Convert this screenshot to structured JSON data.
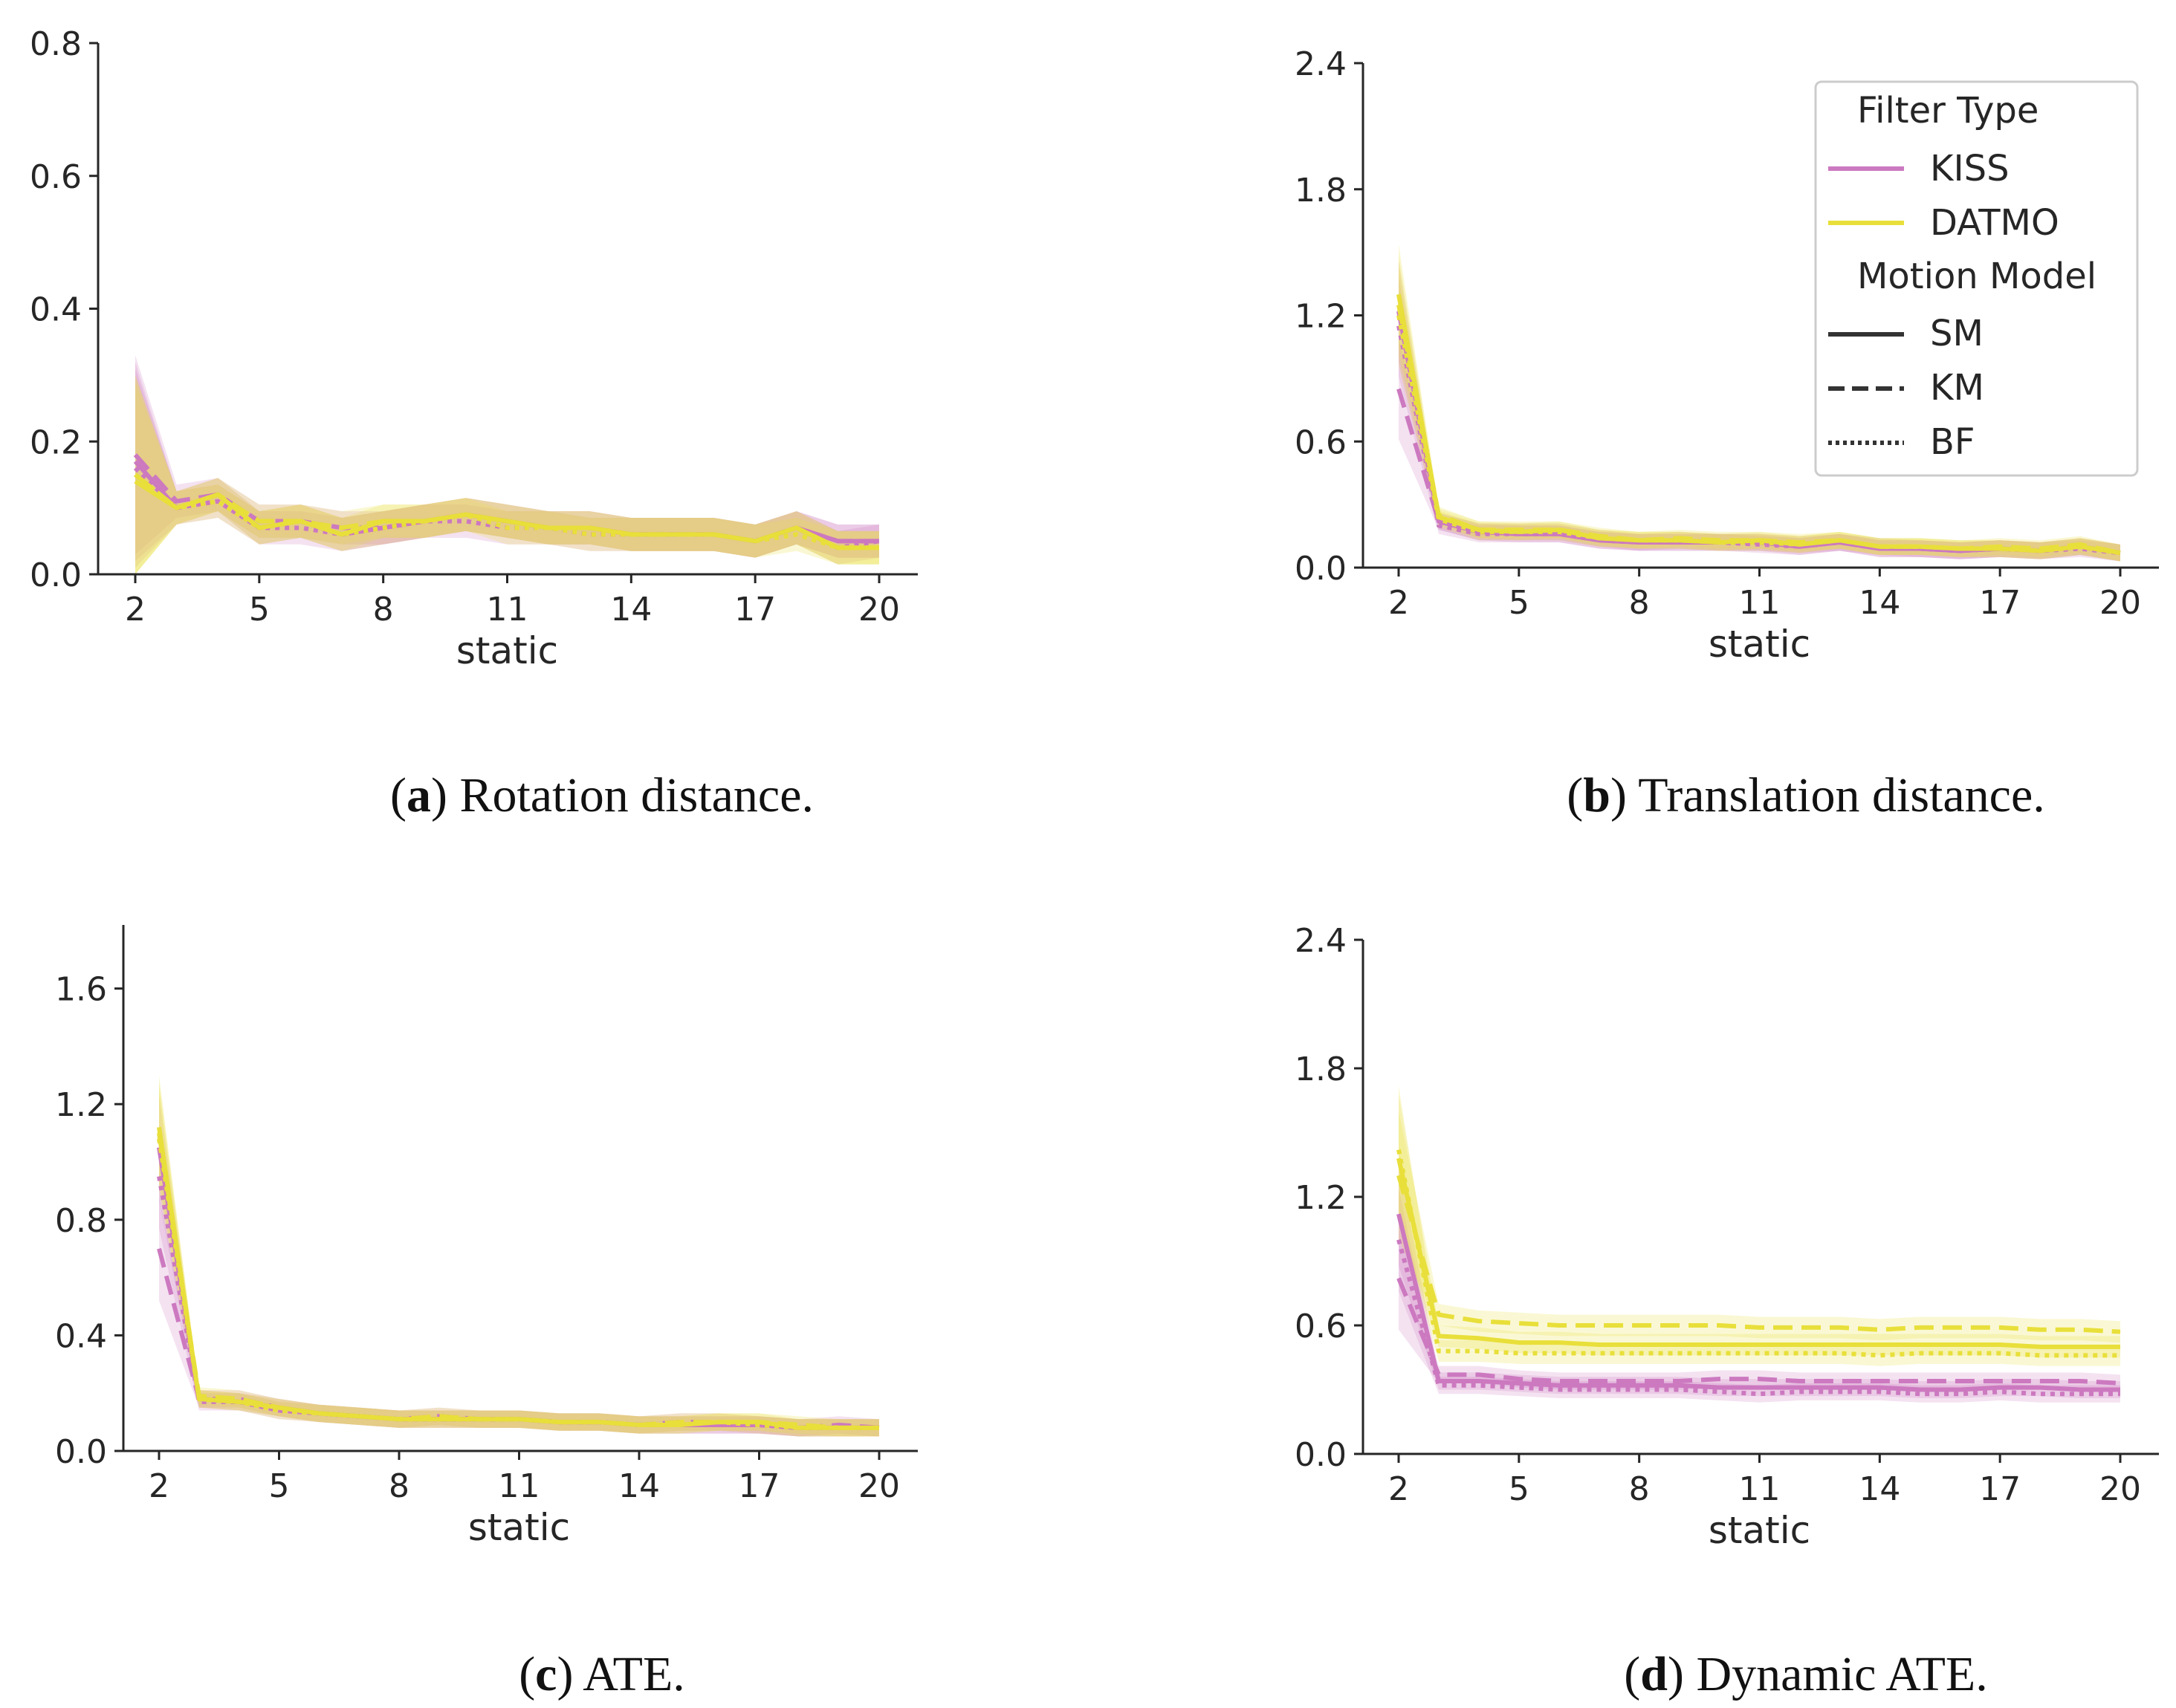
{
  "colors": {
    "KISS": "#cc79c0",
    "DATMO": "#e8df3a",
    "axis": "#262626"
  },
  "legend": {
    "filter_title": "Filter Type",
    "filter_items": [
      "KISS",
      "DATMO"
    ],
    "motion_title": "Motion Model",
    "motion_items": [
      "SM",
      "KM",
      "BF"
    ]
  },
  "chart_data": [
    {
      "type": "line",
      "caption_letter": "a",
      "caption_text": "Rotation distance.",
      "xlabel": "static",
      "ylabel": "",
      "xlim": [
        2,
        20
      ],
      "ylim": [
        0,
        0.8
      ],
      "xticks": [
        2,
        5,
        8,
        11,
        14,
        17,
        20
      ],
      "yticks": [
        "0.0",
        "0.2",
        "0.4",
        "0.6",
        "0.8"
      ],
      "x": [
        2,
        3,
        4,
        5,
        6,
        7,
        8,
        9,
        10,
        11,
        12,
        13,
        14,
        15,
        16,
        17,
        18,
        19,
        20
      ],
      "series": [
        {
          "filter": "KISS",
          "model": "SM",
          "values": [
            0.17,
            0.1,
            0.12,
            0.07,
            0.08,
            0.06,
            0.07,
            0.08,
            0.09,
            0.08,
            0.07,
            0.07,
            0.06,
            0.06,
            0.06,
            0.05,
            0.07,
            0.05,
            0.05
          ],
          "band": 0.025
        },
        {
          "filter": "KISS",
          "model": "KM",
          "values": [
            0.18,
            0.11,
            0.12,
            0.08,
            0.08,
            0.07,
            0.07,
            0.08,
            0.09,
            0.08,
            0.07,
            0.07,
            0.06,
            0.06,
            0.06,
            0.05,
            0.07,
            0.05,
            0.05
          ],
          "band": 0.025
        },
        {
          "filter": "KISS",
          "model": "BF",
          "values": [
            0.16,
            0.1,
            0.11,
            0.07,
            0.07,
            0.06,
            0.07,
            0.08,
            0.08,
            0.07,
            0.07,
            0.06,
            0.06,
            0.06,
            0.06,
            0.05,
            0.07,
            0.04,
            0.05
          ],
          "band": 0.025
        },
        {
          "filter": "DATMO",
          "model": "SM",
          "values": [
            0.14,
            0.1,
            0.12,
            0.07,
            0.08,
            0.06,
            0.08,
            0.08,
            0.09,
            0.08,
            0.07,
            0.07,
            0.06,
            0.06,
            0.06,
            0.05,
            0.07,
            0.04,
            0.04
          ],
          "band": 0.025
        },
        {
          "filter": "DATMO",
          "model": "KM",
          "values": [
            0.15,
            0.1,
            0.12,
            0.08,
            0.08,
            0.07,
            0.08,
            0.08,
            0.09,
            0.08,
            0.07,
            0.07,
            0.06,
            0.06,
            0.06,
            0.05,
            0.07,
            0.04,
            0.04
          ],
          "band": 0.025
        },
        {
          "filter": "DATMO",
          "model": "BF",
          "values": [
            0.15,
            0.1,
            0.11,
            0.07,
            0.08,
            0.06,
            0.07,
            0.08,
            0.09,
            0.07,
            0.07,
            0.06,
            0.06,
            0.06,
            0.06,
            0.05,
            0.06,
            0.04,
            0.04
          ],
          "band": 0.025
        }
      ]
    },
    {
      "type": "line",
      "caption_letter": "b",
      "caption_text": "Translation distance.",
      "xlabel": "static",
      "ylabel": "",
      "xlim": [
        2,
        20
      ],
      "ylim": [
        0,
        2.4
      ],
      "xticks": [
        2,
        5,
        8,
        11,
        14,
        17,
        20
      ],
      "yticks": [
        "0.0",
        "0.6",
        "1.2",
        "1.8",
        "2.4"
      ],
      "x": [
        2,
        3,
        4,
        5,
        6,
        7,
        8,
        9,
        10,
        11,
        12,
        13,
        14,
        15,
        16,
        17,
        18,
        19,
        20
      ],
      "series": [
        {
          "filter": "KISS",
          "model": "SM",
          "values": [
            1.22,
            0.22,
            0.17,
            0.16,
            0.16,
            0.13,
            0.12,
            0.12,
            0.12,
            0.12,
            0.1,
            0.12,
            0.09,
            0.09,
            0.08,
            0.09,
            0.08,
            0.1,
            0.07
          ],
          "band": 0.04
        },
        {
          "filter": "KISS",
          "model": "KM",
          "values": [
            0.85,
            0.22,
            0.17,
            0.17,
            0.17,
            0.14,
            0.12,
            0.13,
            0.12,
            0.12,
            0.11,
            0.12,
            0.1,
            0.09,
            0.08,
            0.09,
            0.08,
            0.1,
            0.07
          ],
          "band": 0.04
        },
        {
          "filter": "KISS",
          "model": "BF",
          "values": [
            1.15,
            0.2,
            0.16,
            0.16,
            0.16,
            0.13,
            0.12,
            0.12,
            0.12,
            0.11,
            0.1,
            0.12,
            0.09,
            0.09,
            0.08,
            0.09,
            0.08,
            0.09,
            0.07
          ],
          "band": 0.04
        },
        {
          "filter": "DATMO",
          "model": "SM",
          "values": [
            1.3,
            0.24,
            0.18,
            0.17,
            0.18,
            0.14,
            0.13,
            0.13,
            0.12,
            0.13,
            0.11,
            0.13,
            0.1,
            0.1,
            0.09,
            0.09,
            0.08,
            0.1,
            0.07
          ],
          "band": 0.04
        },
        {
          "filter": "DATMO",
          "model": "KM",
          "values": [
            1.25,
            0.25,
            0.18,
            0.18,
            0.18,
            0.15,
            0.13,
            0.14,
            0.13,
            0.13,
            0.12,
            0.13,
            0.1,
            0.1,
            0.09,
            0.1,
            0.09,
            0.11,
            0.07
          ],
          "band": 0.04
        },
        {
          "filter": "DATMO",
          "model": "BF",
          "values": [
            1.2,
            0.23,
            0.17,
            0.17,
            0.17,
            0.14,
            0.13,
            0.13,
            0.12,
            0.12,
            0.11,
            0.13,
            0.1,
            0.1,
            0.09,
            0.09,
            0.08,
            0.1,
            0.07
          ],
          "band": 0.04
        }
      ]
    },
    {
      "type": "line",
      "caption_letter": "c",
      "caption_text": "ATE.",
      "xlabel": "static",
      "ylabel": "",
      "xlim": [
        2,
        20
      ],
      "ylim": [
        0,
        1.82
      ],
      "xticks": [
        2,
        5,
        8,
        11,
        14,
        17,
        20
      ],
      "yticks": [
        "0.0",
        "0.4",
        "0.8",
        "1.2",
        "1.6"
      ],
      "ytick_values": [
        0,
        0.4,
        0.8,
        1.2,
        1.6
      ],
      "x": [
        2,
        3,
        4,
        5,
        6,
        7,
        8,
        9,
        10,
        11,
        12,
        13,
        14,
        15,
        16,
        17,
        18,
        19,
        20
      ],
      "series": [
        {
          "filter": "KISS",
          "model": "SM",
          "values": [
            1.05,
            0.18,
            0.17,
            0.15,
            0.13,
            0.12,
            0.11,
            0.11,
            0.11,
            0.11,
            0.1,
            0.1,
            0.09,
            0.09,
            0.09,
            0.09,
            0.08,
            0.08,
            0.08
          ],
          "band": 0.03
        },
        {
          "filter": "KISS",
          "model": "KM",
          "values": [
            0.7,
            0.18,
            0.18,
            0.15,
            0.13,
            0.12,
            0.11,
            0.12,
            0.11,
            0.11,
            0.1,
            0.1,
            0.09,
            0.1,
            0.1,
            0.09,
            0.08,
            0.09,
            0.08
          ],
          "band": 0.03
        },
        {
          "filter": "KISS",
          "model": "BF",
          "values": [
            0.95,
            0.17,
            0.17,
            0.14,
            0.13,
            0.12,
            0.11,
            0.11,
            0.11,
            0.11,
            0.1,
            0.1,
            0.09,
            0.09,
            0.09,
            0.09,
            0.08,
            0.08,
            0.08
          ],
          "band": 0.03
        },
        {
          "filter": "DATMO",
          "model": "SM",
          "values": [
            1.12,
            0.18,
            0.17,
            0.15,
            0.13,
            0.12,
            0.11,
            0.11,
            0.11,
            0.11,
            0.1,
            0.1,
            0.09,
            0.09,
            0.1,
            0.1,
            0.08,
            0.08,
            0.08
          ],
          "band": 0.03
        },
        {
          "filter": "DATMO",
          "model": "KM",
          "values": [
            1.1,
            0.19,
            0.18,
            0.15,
            0.13,
            0.12,
            0.11,
            0.12,
            0.11,
            0.11,
            0.1,
            0.1,
            0.09,
            0.1,
            0.1,
            0.1,
            0.09,
            0.08,
            0.08
          ],
          "band": 0.03
        },
        {
          "filter": "DATMO",
          "model": "BF",
          "values": [
            1.08,
            0.18,
            0.17,
            0.14,
            0.13,
            0.12,
            0.11,
            0.11,
            0.11,
            0.11,
            0.1,
            0.1,
            0.09,
            0.09,
            0.1,
            0.09,
            0.08,
            0.08,
            0.08
          ],
          "band": 0.03
        }
      ]
    },
    {
      "type": "line",
      "caption_letter": "d",
      "caption_text": "Dynamic ATE.",
      "xlabel": "static",
      "ylabel": "",
      "xlim": [
        2,
        20
      ],
      "ylim": [
        0,
        2.4
      ],
      "xticks": [
        2,
        5,
        8,
        11,
        14,
        17,
        20
      ],
      "yticks": [
        "0.0",
        "0.6",
        "1.2",
        "1.8",
        "2.4"
      ],
      "x": [
        2,
        3,
        4,
        5,
        6,
        7,
        8,
        9,
        10,
        11,
        12,
        13,
        14,
        15,
        16,
        17,
        18,
        19,
        20
      ],
      "series": [
        {
          "filter": "KISS",
          "model": "SM",
          "values": [
            1.12,
            0.34,
            0.34,
            0.33,
            0.32,
            0.32,
            0.32,
            0.32,
            0.31,
            0.31,
            0.31,
            0.31,
            0.31,
            0.3,
            0.3,
            0.31,
            0.31,
            0.3,
            0.3
          ],
          "band": 0.04
        },
        {
          "filter": "KISS",
          "model": "KM",
          "values": [
            0.82,
            0.37,
            0.37,
            0.35,
            0.34,
            0.34,
            0.34,
            0.34,
            0.35,
            0.35,
            0.34,
            0.34,
            0.34,
            0.34,
            0.34,
            0.34,
            0.34,
            0.34,
            0.33
          ],
          "band": 0.04
        },
        {
          "filter": "KISS",
          "model": "BF",
          "values": [
            1.0,
            0.32,
            0.32,
            0.31,
            0.3,
            0.3,
            0.3,
            0.3,
            0.29,
            0.28,
            0.29,
            0.29,
            0.29,
            0.28,
            0.28,
            0.29,
            0.28,
            0.28,
            0.28
          ],
          "band": 0.04
        },
        {
          "filter": "DATMO",
          "model": "SM",
          "values": [
            1.38,
            0.55,
            0.54,
            0.52,
            0.52,
            0.51,
            0.51,
            0.51,
            0.51,
            0.51,
            0.51,
            0.51,
            0.51,
            0.51,
            0.51,
            0.51,
            0.5,
            0.5,
            0.5
          ],
          "band": 0.05
        },
        {
          "filter": "DATMO",
          "model": "KM",
          "values": [
            1.3,
            0.65,
            0.62,
            0.61,
            0.6,
            0.6,
            0.6,
            0.6,
            0.6,
            0.59,
            0.59,
            0.59,
            0.58,
            0.59,
            0.59,
            0.59,
            0.58,
            0.58,
            0.57
          ],
          "band": 0.05
        },
        {
          "filter": "DATMO",
          "model": "BF",
          "values": [
            1.42,
            0.48,
            0.48,
            0.47,
            0.47,
            0.47,
            0.47,
            0.47,
            0.47,
            0.47,
            0.47,
            0.47,
            0.46,
            0.47,
            0.47,
            0.47,
            0.46,
            0.46,
            0.46
          ],
          "band": 0.05
        }
      ]
    }
  ]
}
